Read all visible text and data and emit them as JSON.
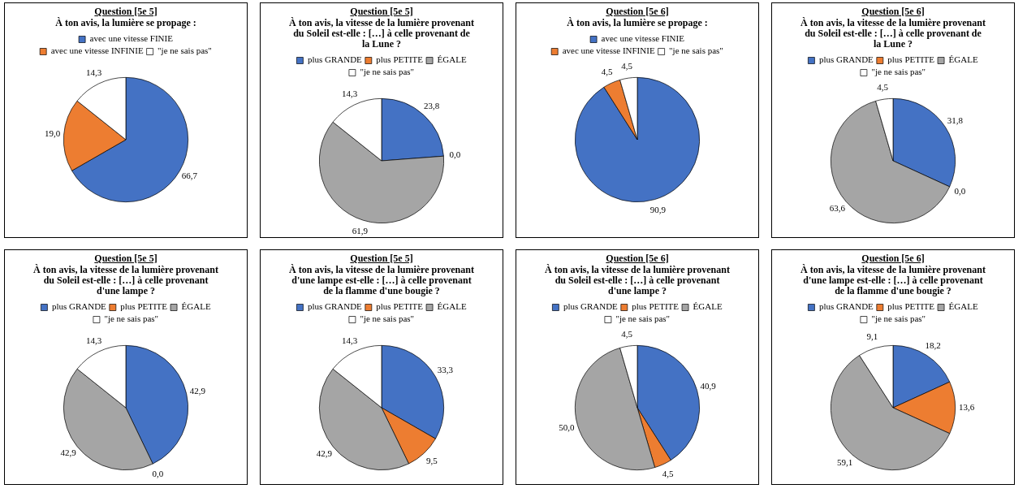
{
  "chart_data": [
    {
      "type": "pie",
      "title": "Question [5e 5]",
      "subtitle": "À ton avis, la lumière se propage :",
      "categories": [
        "avec une vitesse FINIE",
        "avec une vitesse INFINIE",
        "\"je ne sais pas\""
      ],
      "values": [
        66.7,
        19.0,
        14.3
      ],
      "value_labels": [
        "66,7",
        "19,0",
        "14,3"
      ],
      "colors": [
        "#4472c4",
        "#ed7d31",
        "#ffffff"
      ],
      "legend": "top"
    },
    {
      "type": "pie",
      "title": "Question [5e 5]",
      "subtitle": "À ton avis, la vitesse de la lumière provenant du Soleil est-elle : […] à celle provenant de la Lune ?",
      "categories": [
        "plus GRANDE",
        "plus PETITE",
        "ÉGALE",
        "\"je ne sais pas\""
      ],
      "values": [
        23.8,
        0.0,
        61.9,
        14.3
      ],
      "value_labels": [
        "23,8",
        "0,0",
        "61,9",
        "14,3"
      ],
      "colors": [
        "#4472c4",
        "#ed7d31",
        "#a5a5a5",
        "#ffffff"
      ],
      "legend": "top"
    },
    {
      "type": "pie",
      "title": "Question [5e 6]",
      "subtitle": "À ton avis, la lumière se propage :",
      "categories": [
        "avec une vitesse FINIE",
        "avec une vitesse INFINIE",
        "\"je ne sais pas\""
      ],
      "values": [
        90.9,
        4.5,
        4.5
      ],
      "value_labels": [
        "90,9",
        "4,5",
        "4,5"
      ],
      "colors": [
        "#4472c4",
        "#ed7d31",
        "#ffffff"
      ],
      "legend": "top"
    },
    {
      "type": "pie",
      "title": "Question [5e 6]",
      "subtitle": "À ton avis, la vitesse de la lumière provenant du Soleil est-elle : […] à celle provenant de la Lune ?",
      "categories": [
        "plus GRANDE",
        "plus PETITE",
        "ÉGALE",
        "\"je ne sais pas\""
      ],
      "values": [
        31.8,
        0.0,
        63.6,
        4.5
      ],
      "value_labels": [
        "31,8",
        "0,0",
        "63,6",
        "4,5"
      ],
      "colors": [
        "#4472c4",
        "#ed7d31",
        "#a5a5a5",
        "#ffffff"
      ],
      "legend": "top"
    },
    {
      "type": "pie",
      "title": "Question [5e 5]",
      "subtitle": "À ton avis, la vitesse de la lumière provenant du Soleil est-elle : […] à celle provenant d'une lampe ?",
      "categories": [
        "plus GRANDE",
        "plus PETITE",
        "ÉGALE",
        "\"je ne sais pas\""
      ],
      "values": [
        42.9,
        0.0,
        42.9,
        14.3
      ],
      "value_labels": [
        "42,9",
        "0,0",
        "42,9",
        "14,3"
      ],
      "colors": [
        "#4472c4",
        "#ed7d31",
        "#a5a5a5",
        "#ffffff"
      ],
      "legend": "top"
    },
    {
      "type": "pie",
      "title": "Question [5e 5]",
      "subtitle": "À ton avis, la vitesse de la lumière provenant d'une lampe est-elle : […] à celle provenant de la flamme d'une bougie ?",
      "categories": [
        "plus GRANDE",
        "plus PETITE",
        "ÉGALE",
        "\"je ne sais pas\""
      ],
      "values": [
        33.3,
        9.5,
        42.9,
        14.3
      ],
      "value_labels": [
        "33,3",
        "9,5",
        "42,9",
        "14,3"
      ],
      "colors": [
        "#4472c4",
        "#ed7d31",
        "#a5a5a5",
        "#ffffff"
      ],
      "legend": "top"
    },
    {
      "type": "pie",
      "title": "Question [5e 6]",
      "subtitle": "À ton avis, la vitesse de la lumière provenant du Soleil est-elle : […] à celle provenant d'une lampe ?",
      "categories": [
        "plus GRANDE",
        "plus PETITE",
        "ÉGALE",
        "\"je ne sais pas\""
      ],
      "values": [
        40.9,
        4.5,
        50.0,
        4.5
      ],
      "value_labels": [
        "40,9",
        "4,5",
        "50,0",
        "4,5"
      ],
      "colors": [
        "#4472c4",
        "#ed7d31",
        "#a5a5a5",
        "#ffffff"
      ],
      "legend": "top"
    },
    {
      "type": "pie",
      "title": "Question [5e 6]",
      "subtitle": "À ton avis, la vitesse de la lumière provenant d'une lampe est-elle : […] à celle provenant de la flamme d'une bougie ?",
      "categories": [
        "plus GRANDE",
        "plus PETITE",
        "ÉGALE",
        "\"je ne sais pas\""
      ],
      "values": [
        18.2,
        13.6,
        59.1,
        9.1
      ],
      "value_labels": [
        "18,2",
        "13,6",
        "59,1",
        "9,1"
      ],
      "colors": [
        "#4472c4",
        "#ed7d31",
        "#a5a5a5",
        "#ffffff"
      ],
      "legend": "top"
    }
  ]
}
